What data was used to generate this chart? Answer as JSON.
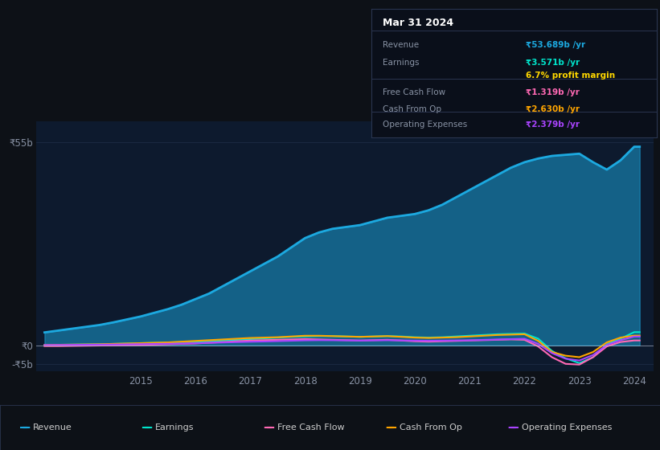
{
  "bg_color": "#0d1117",
  "plot_bg_color": "#0d1a2e",
  "text_color": "#8892a4",
  "series": {
    "Revenue": {
      "color": "#1ca9e0",
      "fill": true,
      "fill_alpha": 0.5,
      "linewidth": 2.0,
      "values_x": [
        2013.25,
        2013.5,
        2013.75,
        2014.0,
        2014.25,
        2014.5,
        2014.75,
        2015.0,
        2015.25,
        2015.5,
        2015.75,
        2016.0,
        2016.25,
        2016.5,
        2016.75,
        2017.0,
        2017.25,
        2017.5,
        2017.75,
        2018.0,
        2018.25,
        2018.5,
        2018.75,
        2019.0,
        2019.25,
        2019.5,
        2019.75,
        2020.0,
        2020.25,
        2020.5,
        2020.75,
        2021.0,
        2021.25,
        2021.5,
        2021.75,
        2022.0,
        2022.25,
        2022.5,
        2022.75,
        2023.0,
        2023.25,
        2023.5,
        2023.75,
        2024.0,
        2024.1
      ],
      "values_y": [
        3500000000,
        4000000000,
        4500000000,
        5000000000,
        5500000000,
        6200000000,
        7000000000,
        7800000000,
        8800000000,
        9800000000,
        11000000000,
        12500000000,
        14000000000,
        16000000000,
        18000000000,
        20000000000,
        22000000000,
        24000000000,
        26500000000,
        29000000000,
        30500000000,
        31500000000,
        32000000000,
        32500000000,
        33500000000,
        34500000000,
        35000000000,
        35500000000,
        36500000000,
        38000000000,
        40000000000,
        42000000000,
        44000000000,
        46000000000,
        48000000000,
        49500000000,
        50500000000,
        51200000000,
        51500000000,
        51800000000,
        49500000000,
        47500000000,
        50000000000,
        53689000000,
        53689000000
      ]
    },
    "Earnings": {
      "color": "#00e5cc",
      "fill": false,
      "linewidth": 1.5,
      "values_x": [
        2013.25,
        2013.5,
        2013.75,
        2014.0,
        2014.25,
        2014.5,
        2014.75,
        2015.0,
        2015.25,
        2015.5,
        2015.75,
        2016.0,
        2016.25,
        2016.5,
        2016.75,
        2017.0,
        2017.25,
        2017.5,
        2017.75,
        2018.0,
        2018.25,
        2018.5,
        2018.75,
        2019.0,
        2019.25,
        2019.5,
        2019.75,
        2020.0,
        2020.25,
        2020.5,
        2020.75,
        2021.0,
        2021.25,
        2021.5,
        2021.75,
        2022.0,
        2022.25,
        2022.5,
        2022.75,
        2023.0,
        2023.25,
        2023.5,
        2023.75,
        2024.0,
        2024.1
      ],
      "values_y": [
        100000000,
        150000000,
        200000000,
        250000000,
        300000000,
        400000000,
        500000000,
        600000000,
        700000000,
        800000000,
        900000000,
        1000000000,
        1100000000,
        1300000000,
        1500000000,
        1700000000,
        1900000000,
        2100000000,
        2300000000,
        2400000000,
        2500000000,
        2500000000,
        2400000000,
        2300000000,
        2400000000,
        2500000000,
        2400000000,
        2200000000,
        2100000000,
        2200000000,
        2400000000,
        2600000000,
        2800000000,
        3000000000,
        3100000000,
        3200000000,
        1800000000,
        -1500000000,
        -3500000000,
        -4800000000,
        -3200000000,
        300000000,
        1800000000,
        3571000000,
        3571000000
      ]
    },
    "Free Cash Flow": {
      "color": "#ff69b4",
      "fill": false,
      "linewidth": 1.5,
      "values_x": [
        2013.25,
        2013.5,
        2013.75,
        2014.0,
        2014.25,
        2014.5,
        2014.75,
        2015.0,
        2015.25,
        2015.5,
        2015.75,
        2016.0,
        2016.25,
        2016.5,
        2016.75,
        2017.0,
        2017.25,
        2017.5,
        2017.75,
        2018.0,
        2018.25,
        2018.5,
        2018.75,
        2019.0,
        2019.25,
        2019.5,
        2019.75,
        2020.0,
        2020.25,
        2020.5,
        2020.75,
        2021.0,
        2021.25,
        2021.5,
        2021.75,
        2022.0,
        2022.25,
        2022.5,
        2022.75,
        2023.0,
        2023.25,
        2023.5,
        2023.75,
        2024.0,
        2024.1
      ],
      "values_y": [
        -200000000,
        -200000000,
        -150000000,
        -100000000,
        -50000000,
        0,
        50000000,
        100000000,
        200000000,
        300000000,
        400000000,
        500000000,
        700000000,
        900000000,
        1100000000,
        1300000000,
        1400000000,
        1500000000,
        1600000000,
        1700000000,
        1600000000,
        1500000000,
        1400000000,
        1300000000,
        1400000000,
        1500000000,
        1300000000,
        1100000000,
        1000000000,
        1100000000,
        1200000000,
        1300000000,
        1400000000,
        1500000000,
        1600000000,
        1500000000,
        -300000000,
        -3200000000,
        -5000000000,
        -5200000000,
        -3200000000,
        -300000000,
        900000000,
        1319000000,
        1319000000
      ]
    },
    "Cash From Op": {
      "color": "#ffa500",
      "fill": false,
      "linewidth": 1.5,
      "values_x": [
        2013.25,
        2013.5,
        2013.75,
        2014.0,
        2014.25,
        2014.5,
        2014.75,
        2015.0,
        2015.25,
        2015.5,
        2015.75,
        2016.0,
        2016.25,
        2016.5,
        2016.75,
        2017.0,
        2017.25,
        2017.5,
        2017.75,
        2018.0,
        2018.25,
        2018.5,
        2018.75,
        2019.0,
        2019.25,
        2019.5,
        2019.75,
        2020.0,
        2020.25,
        2020.5,
        2020.75,
        2021.0,
        2021.25,
        2021.5,
        2021.75,
        2022.0,
        2022.25,
        2022.5,
        2022.75,
        2023.0,
        2023.25,
        2023.5,
        2023.75,
        2024.0,
        2024.1
      ],
      "values_y": [
        100000000,
        150000000,
        200000000,
        250000000,
        300000000,
        400000000,
        500000000,
        600000000,
        700000000,
        800000000,
        1000000000,
        1200000000,
        1400000000,
        1600000000,
        1800000000,
        2000000000,
        2100000000,
        2200000000,
        2400000000,
        2600000000,
        2600000000,
        2500000000,
        2400000000,
        2300000000,
        2400000000,
        2500000000,
        2300000000,
        2100000000,
        2000000000,
        2100000000,
        2200000000,
        2400000000,
        2600000000,
        2800000000,
        2900000000,
        3000000000,
        1200000000,
        -1800000000,
        -2800000000,
        -3200000000,
        -1800000000,
        800000000,
        2100000000,
        2630000000,
        2630000000
      ]
    },
    "Operating Expenses": {
      "color": "#aa44ff",
      "fill": false,
      "linewidth": 1.5,
      "values_x": [
        2013.25,
        2013.5,
        2013.75,
        2014.0,
        2014.25,
        2014.5,
        2014.75,
        2015.0,
        2015.25,
        2015.5,
        2015.75,
        2016.0,
        2016.25,
        2016.5,
        2016.75,
        2017.0,
        2017.25,
        2017.5,
        2017.75,
        2018.0,
        2018.25,
        2018.5,
        2018.75,
        2019.0,
        2019.25,
        2019.5,
        2019.75,
        2020.0,
        2020.25,
        2020.5,
        2020.75,
        2021.0,
        2021.25,
        2021.5,
        2021.75,
        2022.0,
        2022.25,
        2022.5,
        2022.75,
        2023.0,
        2023.25,
        2023.5,
        2023.75,
        2024.0,
        2024.1
      ],
      "values_y": [
        80000000,
        100000000,
        130000000,
        160000000,
        190000000,
        230000000,
        280000000,
        330000000,
        380000000,
        430000000,
        480000000,
        580000000,
        680000000,
        780000000,
        880000000,
        980000000,
        1050000000,
        1150000000,
        1250000000,
        1350000000,
        1400000000,
        1380000000,
        1340000000,
        1300000000,
        1340000000,
        1380000000,
        1340000000,
        1280000000,
        1230000000,
        1280000000,
        1330000000,
        1380000000,
        1480000000,
        1580000000,
        1680000000,
        1780000000,
        400000000,
        -2100000000,
        -3600000000,
        -4100000000,
        -2600000000,
        100000000,
        1400000000,
        2379000000,
        2379000000
      ]
    }
  },
  "tooltip": {
    "date": "Mar 31 2024",
    "rows": [
      {
        "label": "Revenue",
        "value": "₹53.689b /yr",
        "value_color": "#1ca9e0"
      },
      {
        "label": "Earnings",
        "value": "₹3.571b /yr",
        "value_color": "#00e5cc"
      },
      {
        "label": "",
        "value": "6.7% profit margin",
        "value_color": "#ffd700"
      },
      {
        "label": "Free Cash Flow",
        "value": "₹1.319b /yr",
        "value_color": "#ff69b4"
      },
      {
        "label": "Cash From Op",
        "value": "₹2.630b /yr",
        "value_color": "#ffa500"
      },
      {
        "label": "Operating Expenses",
        "value": "₹2.379b /yr",
        "value_color": "#aa44ff"
      }
    ]
  },
  "legend": [
    {
      "label": "Revenue",
      "color": "#1ca9e0"
    },
    {
      "label": "Earnings",
      "color": "#00e5cc"
    },
    {
      "label": "Free Cash Flow",
      "color": "#ff69b4"
    },
    {
      "label": "Cash From Op",
      "color": "#ffa500"
    },
    {
      "label": "Operating Expenses",
      "color": "#aa44ff"
    }
  ]
}
